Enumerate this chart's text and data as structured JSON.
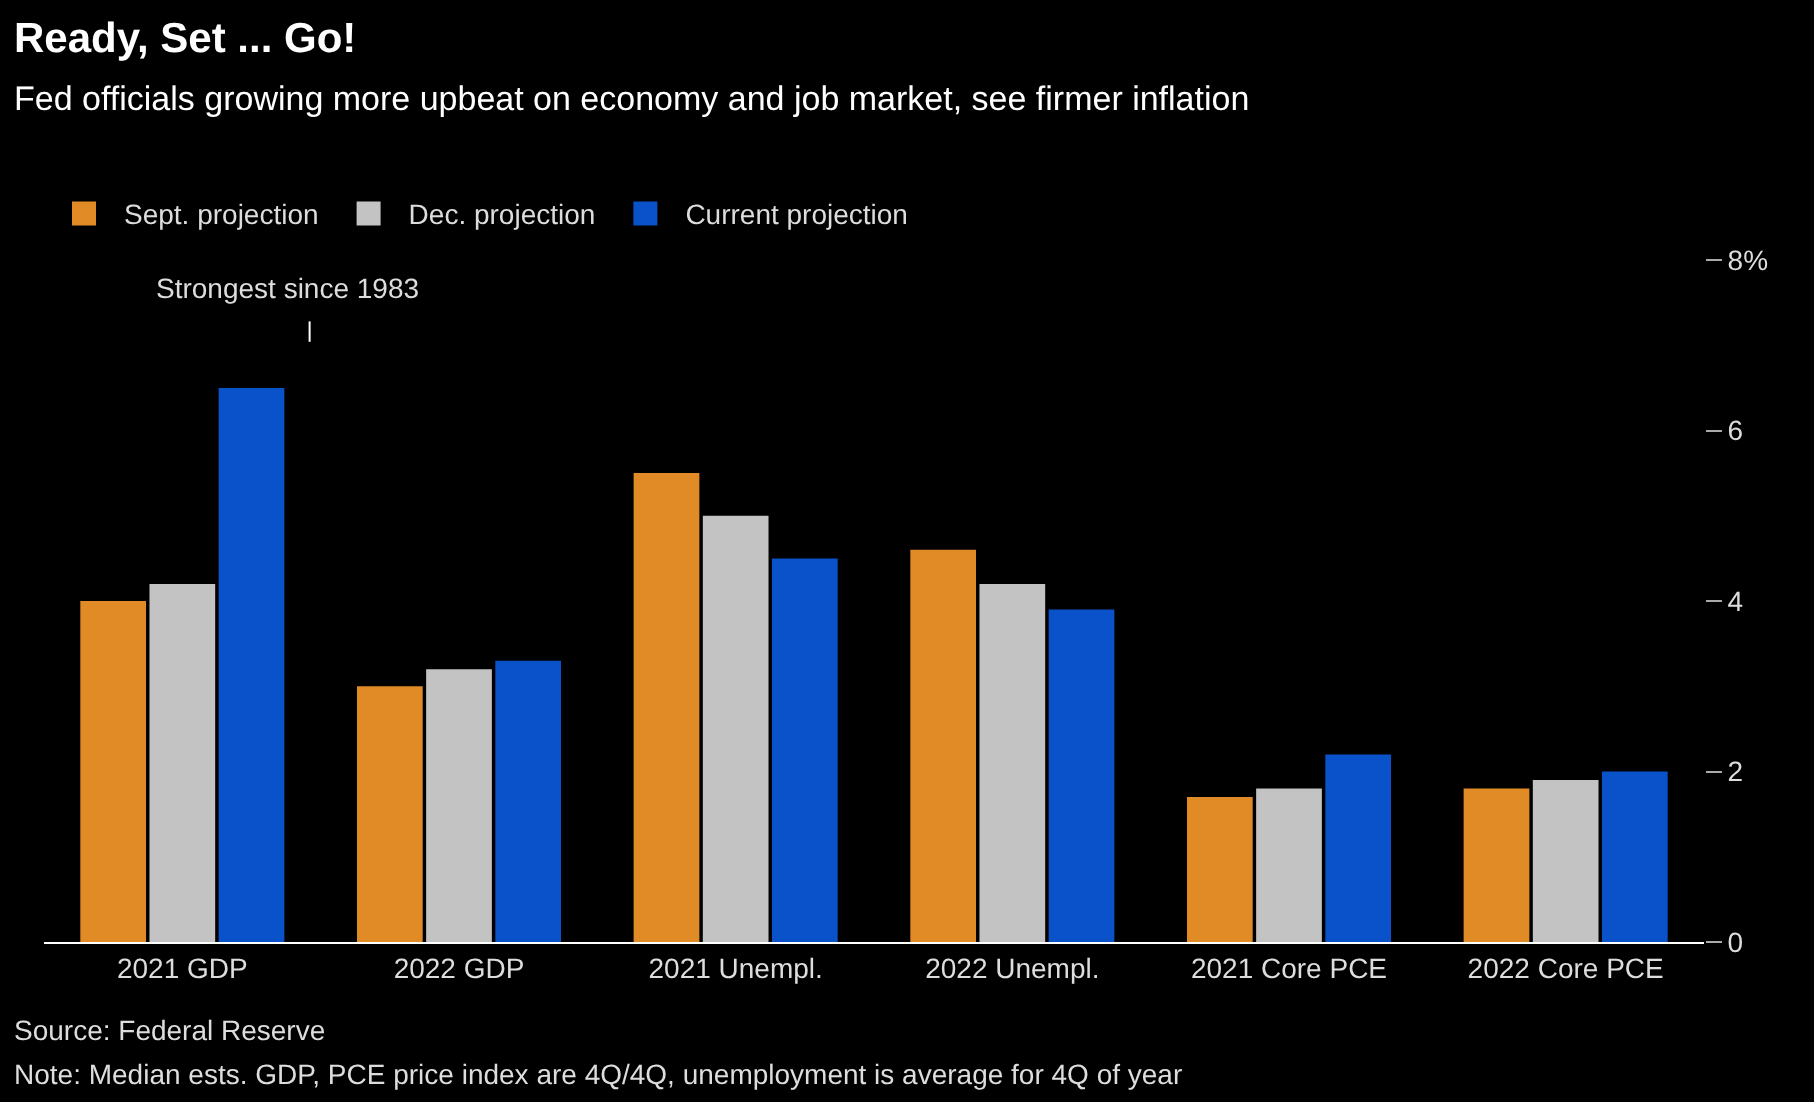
{
  "chart_data": {
    "type": "bar",
    "title": "Ready, Set ... Go!",
    "subtitle": "Fed officials growing more upbeat on economy and job market, see firmer inflation",
    "categories": [
      "2021 GDP",
      "2022 GDP",
      "2021 Unempl.",
      "2022 Unempl.",
      "2021 Core PCE",
      "2022 Core PCE"
    ],
    "series": [
      {
        "name": "Sept. projection",
        "color": "#e08b26",
        "values": [
          4.0,
          3.0,
          5.5,
          4.6,
          1.7,
          1.8
        ]
      },
      {
        "name": "Dec. projection",
        "color": "#c3c3c3",
        "values": [
          4.2,
          3.2,
          5.0,
          4.2,
          1.8,
          1.9
        ]
      },
      {
        "name": "Current projection",
        "color": "#0a52c9",
        "values": [
          6.5,
          3.3,
          4.5,
          3.9,
          2.2,
          2.0
        ]
      }
    ],
    "ylim": [
      0,
      8
    ],
    "yticks": [
      0,
      2,
      4,
      6,
      {
        "value": 8,
        "label": "8%"
      }
    ],
    "grid": false,
    "legend": "top left",
    "annotations": [
      "Strongest since 1983",
      "Source: Federal Reserve",
      "Note: Median ests. GDP, PCE price index are 4Q/4Q, unemployment is average for 4Q of year"
    ]
  }
}
